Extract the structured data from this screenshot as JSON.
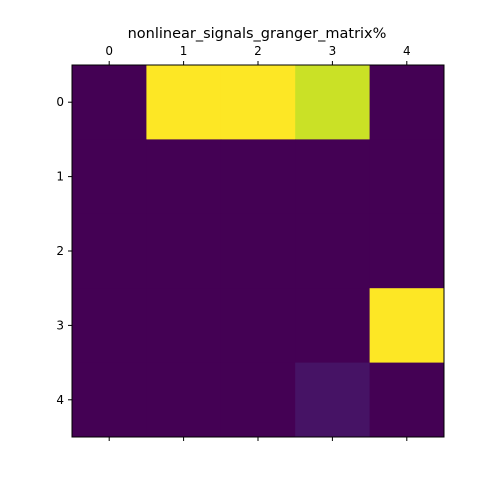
{
  "chart_data": {
    "type": "heatmap",
    "title": "nonlinear_signals_granger_matrix%",
    "x_ticks": [
      "0",
      "1",
      "2",
      "3",
      "4"
    ],
    "y_ticks": [
      "0",
      "1",
      "2",
      "3",
      "4"
    ],
    "x_axis_position": "top",
    "grid": false,
    "colormap": "viridis",
    "values": [
      [
        0.0,
        1.0,
        1.0,
        0.92,
        0.0
      ],
      [
        0.0,
        0.0,
        0.0,
        0.0,
        0.0
      ],
      [
        0.0,
        0.0,
        0.0,
        0.0,
        0.0
      ],
      [
        0.0,
        0.0,
        0.0,
        0.0,
        1.0
      ],
      [
        0.0,
        0.0,
        0.0,
        0.05,
        0.0
      ]
    ],
    "value_range": [
      0,
      1
    ]
  },
  "colors": {
    "low": "#440154",
    "high": "#fde725",
    "axis": "#000000",
    "background": "#ffffff"
  }
}
